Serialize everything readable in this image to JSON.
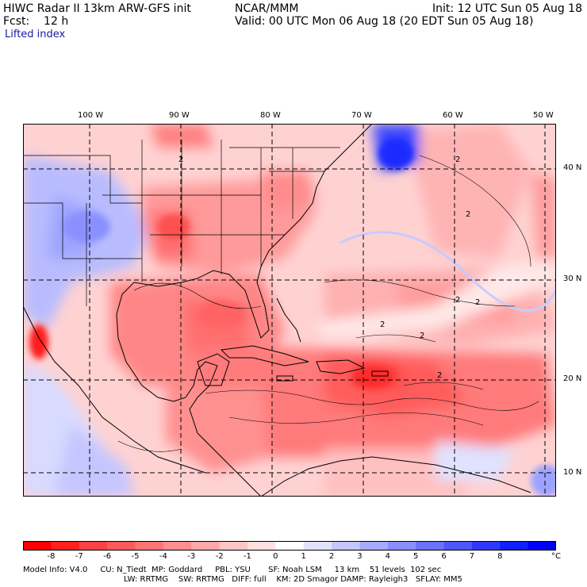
{
  "header": {
    "title": "HIWC Radar II 13km ARW-GFS init",
    "org": "NCAR/MMM",
    "init": "Init: 12 UTC Sun 05 Aug 18",
    "fcst": "Fcst:    12 h",
    "valid": "Valid: 00 UTC Mon 06 Aug 18 (20 EDT Sun 05 Aug 18)",
    "field": "Lifted index"
  },
  "axes": {
    "longitudes": [
      "100 W",
      "90 W",
      "80 W",
      "70 W",
      "60 W",
      "50 W"
    ],
    "latitudes": [
      "40 N",
      "30 N",
      "20 N",
      "10 N"
    ]
  },
  "colorbar": {
    "labels": [
      "-8",
      "-7",
      "-6",
      "-5",
      "-4",
      "-3",
      "-2",
      "-1",
      "0",
      "1",
      "2",
      "3",
      "4",
      "5",
      "6",
      "7",
      "8"
    ],
    "unit": "°C",
    "colors": [
      "#ff0000",
      "#ff2020",
      "#ff4040",
      "#ff5a5a",
      "#ff7474",
      "#ff8e8e",
      "#ffa8a8",
      "#ffc4c4",
      "#ffe0e0",
      "#ffffff",
      "#e2e2ff",
      "#c4c6ff",
      "#a8aaff",
      "#8a8eff",
      "#6c72ff",
      "#4e56ff",
      "#3038ff",
      "#1020ff",
      "#0000ff"
    ]
  },
  "footer": {
    "line1": "Model Info: V4.0     CU: N_Tiedt  MP: Goddard     PBL: YSU       SF: Noah LSM     13 km    51 levels  102 sec",
    "line2": "LW: RRTMG    SW: RRTMG   DIFF: full    KM: 2D Smagor DAMP: Rayleigh3   SFLAY: MM5"
  },
  "contour_labels": [
    "2",
    "2",
    "2",
    "2",
    "2",
    "2",
    "2",
    "2"
  ]
}
